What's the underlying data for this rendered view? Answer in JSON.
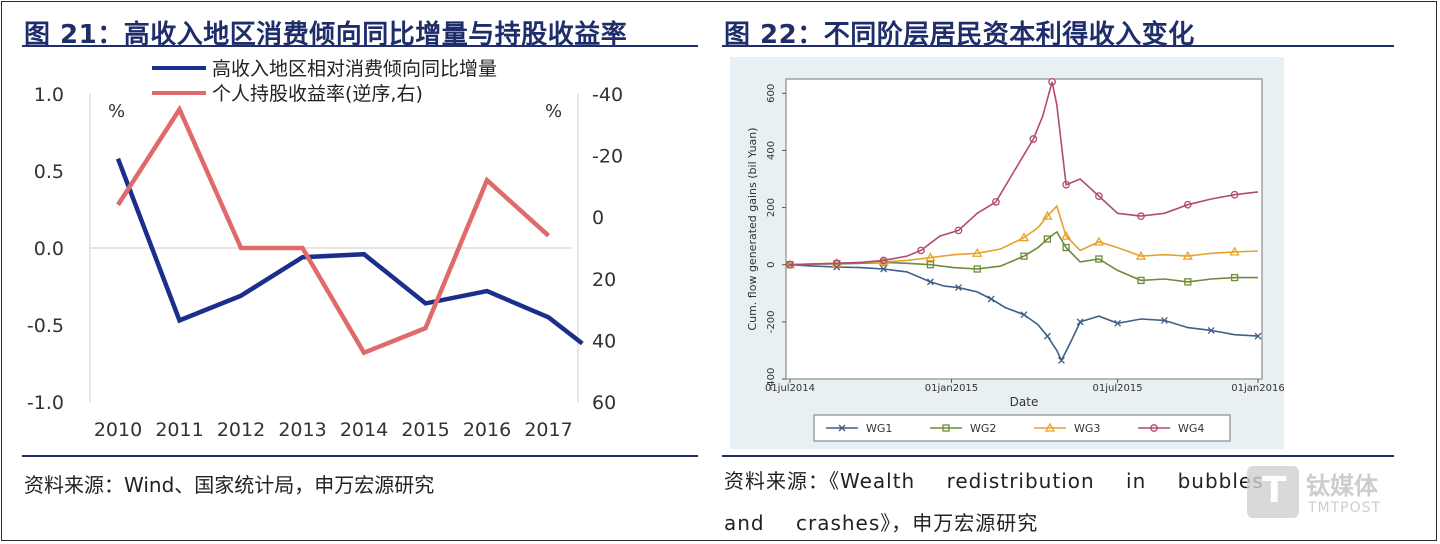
{
  "left": {
    "title": "图 21：高收入地区消费倾向同比增量与持股收益率",
    "source": "资料来源：Wind、国家统计局，申万宏源研究"
  },
  "right": {
    "title": "图 22：不同阶层居民资本利得收入变化",
    "source": "资料来源：《Wealth redistribution in bubbles and crashes》，申万宏源研究"
  },
  "watermark": {
    "logo": "T",
    "text": "钛媒体",
    "sub": "TMTPOST"
  },
  "chart_data": [
    {
      "type": "line",
      "categories": [
        "2010",
        "2011",
        "2012",
        "2013",
        "2014",
        "2015",
        "2016",
        "2017"
      ],
      "ylim": [
        -1.0,
        1.0
      ],
      "y2lim": [
        -40,
        60
      ],
      "y2_reversed": true,
      "y_ticks": [
        "1.0",
        "0.5",
        "0.0",
        "-0.5",
        "-1.0"
      ],
      "y2_ticks": [
        "-40",
        "-20",
        "0",
        "20",
        "40",
        "60"
      ],
      "y_unit_left": "%",
      "y_unit_right": "%",
      "legend_position": "top",
      "grid": false,
      "series": [
        {
          "name": "高收入地区相对消费倾向同比增量",
          "axis": "left",
          "color": "#1a2e8c",
          "x": [
            2010,
            2011,
            2012,
            2013,
            2014,
            2015,
            2016,
            2017,
            2017.55
          ],
          "values": [
            0.58,
            -0.47,
            -0.31,
            -0.06,
            -0.04,
            -0.36,
            -0.28,
            -0.45,
            -0.62
          ]
        },
        {
          "name": "个人持股收益率(逆序,右)",
          "axis": "right",
          "color": "#e06a6a",
          "x": [
            2010,
            2011,
            2012,
            2013,
            2014,
            2015,
            2016,
            2017
          ],
          "values": [
            -4,
            -35,
            10,
            10,
            44,
            36,
            -12,
            6
          ]
        }
      ]
    },
    {
      "type": "line",
      "xlabel": "Date",
      "ylabel": "Cum. flow generated gains (bil Yuan)",
      "x_ticks": [
        "01jul2014",
        "01jan2015",
        "01jul2015",
        "01jan2016"
      ],
      "y_ticks": [
        "600",
        "400",
        "200",
        "0",
        "-200",
        "-400"
      ],
      "ylim": [
        -400,
        650
      ],
      "legend_position": "bottom",
      "series": [
        {
          "name": "WG1",
          "color": "#3e5f86",
          "marker": "x",
          "x": [
            0,
            0.05,
            0.1,
            0.15,
            0.2,
            0.25,
            0.3,
            0.33,
            0.36,
            0.4,
            0.43,
            0.46,
            0.5,
            0.53,
            0.55,
            0.57,
            0.58,
            0.6,
            0.62,
            0.66,
            0.7,
            0.75,
            0.8,
            0.85,
            0.9,
            0.95,
            1.0
          ],
          "values": [
            0,
            -5,
            -8,
            -10,
            -15,
            -25,
            -60,
            -75,
            -80,
            -95,
            -120,
            -150,
            -175,
            -210,
            -250,
            -300,
            -335,
            -270,
            -200,
            -180,
            -205,
            -190,
            -195,
            -220,
            -230,
            -245,
            -250
          ]
        },
        {
          "name": "WG2",
          "color": "#6f8a3c",
          "marker": "square",
          "x": [
            0,
            0.05,
            0.1,
            0.15,
            0.2,
            0.25,
            0.3,
            0.35,
            0.4,
            0.45,
            0.5,
            0.53,
            0.55,
            0.57,
            0.59,
            0.62,
            0.66,
            0.7,
            0.75,
            0.8,
            0.85,
            0.9,
            0.95,
            1.0
          ],
          "values": [
            0,
            2,
            3,
            5,
            8,
            5,
            0,
            -10,
            -15,
            -5,
            30,
            60,
            90,
            115,
            60,
            10,
            20,
            -20,
            -55,
            -50,
            -60,
            -50,
            -45,
            -45
          ]
        },
        {
          "name": "WG3",
          "color": "#e6a22b",
          "marker": "triangle",
          "x": [
            0,
            0.05,
            0.1,
            0.15,
            0.2,
            0.25,
            0.3,
            0.35,
            0.4,
            0.45,
            0.5,
            0.53,
            0.55,
            0.57,
            0.59,
            0.62,
            0.66,
            0.7,
            0.75,
            0.8,
            0.85,
            0.9,
            0.95,
            1.0
          ],
          "values": [
            0,
            2,
            5,
            8,
            10,
            15,
            25,
            35,
            40,
            55,
            95,
            130,
            170,
            205,
            100,
            50,
            80,
            60,
            30,
            35,
            30,
            40,
            45,
            48
          ]
        },
        {
          "name": "WG4",
          "color": "#b24a76",
          "marker": "circle",
          "x": [
            0,
            0.05,
            0.1,
            0.15,
            0.2,
            0.25,
            0.28,
            0.32,
            0.36,
            0.4,
            0.44,
            0.48,
            0.52,
            0.54,
            0.56,
            0.57,
            0.59,
            0.62,
            0.66,
            0.7,
            0.75,
            0.8,
            0.85,
            0.9,
            0.95,
            1.0
          ],
          "values": [
            0,
            3,
            5,
            8,
            15,
            30,
            50,
            100,
            120,
            180,
            220,
            330,
            440,
            520,
            640,
            560,
            280,
            300,
            240,
            180,
            170,
            180,
            210,
            230,
            245,
            255
          ]
        }
      ]
    }
  ]
}
